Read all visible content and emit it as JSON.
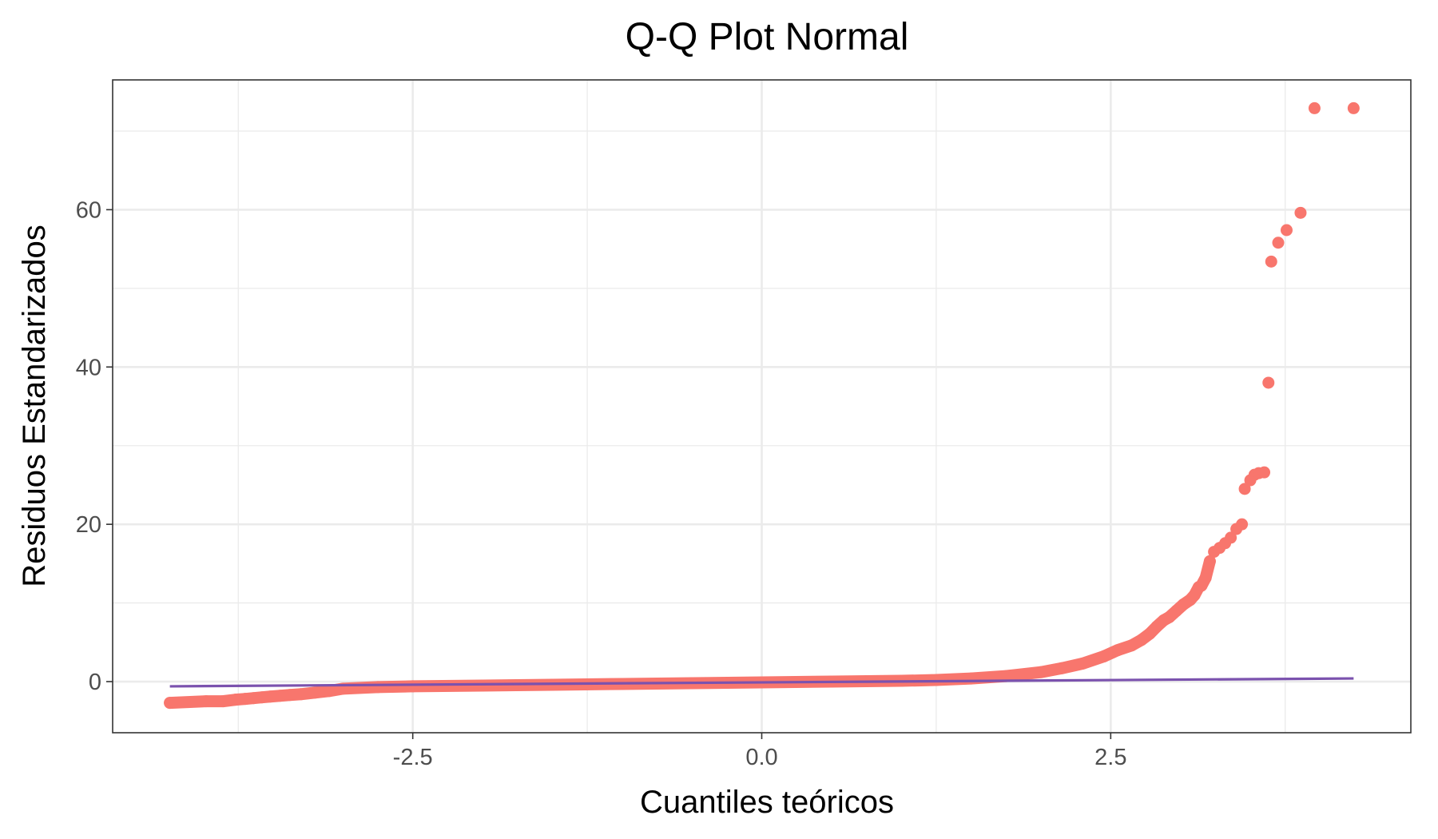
{
  "chart_data": {
    "type": "scatter",
    "title": "Q-Q Plot Normal",
    "xlabel": "Cuantiles teóricos",
    "ylabel": "Residuos Estandarizados",
    "xlim": [
      -4.65,
      4.65
    ],
    "ylim": [
      -6.5,
      76.5
    ],
    "x_ticks": [
      -2.5,
      0.0,
      2.5
    ],
    "x_tick_labels": [
      "-2.5",
      "0.0",
      "2.5"
    ],
    "x_minor_ticks": [
      -3.75,
      -1.25,
      1.25,
      3.75
    ],
    "y_ticks": [
      0,
      20,
      40,
      60
    ],
    "y_tick_labels": [
      "0",
      "20",
      "40",
      "60"
    ],
    "y_minor_ticks": [
      10,
      30,
      50,
      70
    ],
    "grid": true,
    "legend": "none",
    "colors": {
      "points": "#F8766D",
      "line": "#7B52AE",
      "panel_border": "#333333",
      "grid": "#EBEBEB"
    },
    "series": [
      {
        "kind": "points",
        "x": [
          -4.24,
          -3.98,
          -3.86,
          -3.77,
          -3.7,
          -3.64,
          -3.58,
          -3.52,
          -3.45,
          -3.38,
          -3.3,
          -3.2,
          -3.1,
          -3.0,
          -2.75,
          -2.5,
          -2.0,
          -1.5,
          -1.0,
          -0.5,
          0.0,
          0.5,
          1.0,
          1.25,
          1.5,
          1.75,
          2.0,
          2.15,
          2.3,
          2.45,
          2.55,
          2.65,
          2.72,
          2.78,
          2.83,
          2.88,
          2.92,
          2.97,
          3.02,
          3.07,
          3.1,
          3.13,
          3.15,
          3.18,
          3.21,
          3.24,
          3.28,
          3.32,
          3.36,
          3.4,
          3.44,
          3.46,
          3.5,
          3.53,
          3.56,
          3.6,
          3.63,
          3.65,
          3.7,
          3.76,
          3.86,
          3.96,
          4.24
        ],
        "y": [
          -2.7,
          -2.5,
          -2.5,
          -2.3,
          -2.2,
          -2.1,
          -2.0,
          -1.9,
          -1.8,
          -1.7,
          -1.6,
          -1.4,
          -1.2,
          -0.9,
          -0.7,
          -0.6,
          -0.5,
          -0.4,
          -0.3,
          -0.2,
          -0.1,
          0.0,
          0.1,
          0.2,
          0.4,
          0.7,
          1.2,
          1.7,
          2.3,
          3.2,
          4.0,
          4.6,
          5.3,
          6.1,
          7.0,
          7.8,
          8.2,
          9.0,
          9.8,
          10.4,
          11.0,
          12.0,
          12.2,
          13.2,
          15.3,
          16.5,
          17.0,
          17.6,
          18.3,
          19.4,
          20.0,
          24.5,
          25.6,
          26.3,
          26.5,
          26.6,
          38.0,
          53.4,
          55.8,
          57.4,
          59.6,
          72.9,
          72.9
        ]
      },
      {
        "kind": "line",
        "x": [
          -4.24,
          4.24
        ],
        "y": [
          -0.6,
          0.4
        ]
      }
    ]
  }
}
